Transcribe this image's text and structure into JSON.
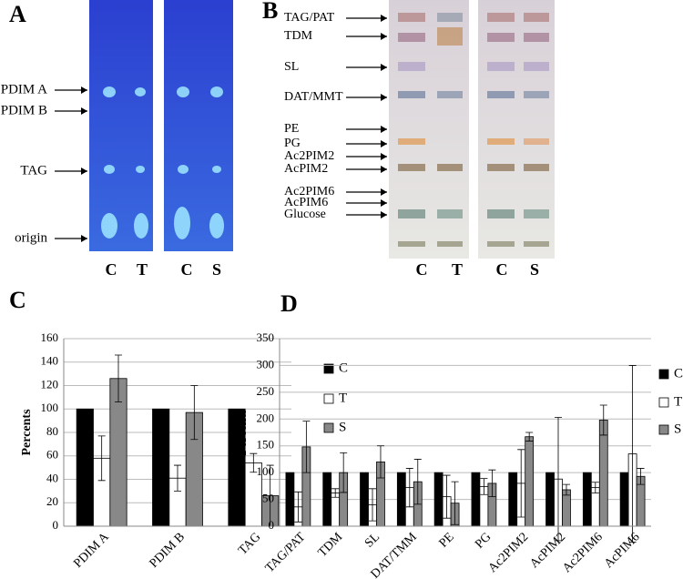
{
  "tlc_panels": [
    {
      "label": "A",
      "bands": [
        "PDIM A",
        "PDIM B",
        "TAG",
        "origin"
      ],
      "lanes": [
        "C",
        "T",
        "C",
        "S"
      ]
    },
    {
      "label": "B",
      "bands": [
        "TAG/PAT",
        "TDM",
        "SL",
        "DAT/MMT",
        "PE",
        "PG",
        "Ac2PIM2",
        "AcPIM2",
        "Ac2PIM6",
        "AcPIM6",
        "Glucose"
      ],
      "lanes": [
        "C",
        "T",
        "C",
        "S"
      ]
    }
  ],
  "chart_data": [
    {
      "type": "bar",
      "title": "C",
      "y_label": "Percents",
      "categories": [
        "PDIM A",
        "PDIM B",
        "TAG"
      ],
      "series": [
        {
          "name": "C",
          "color": "#000000",
          "values": [
            100,
            100,
            100
          ]
        },
        {
          "name": "T",
          "color": "#ffffff",
          "values": [
            58,
            41,
            54
          ],
          "errors": [
            19,
            11,
            8
          ]
        },
        {
          "name": "S",
          "color": "#888888",
          "values": [
            126,
            97,
            26
          ],
          "errors": [
            20,
            23,
            26
          ]
        }
      ],
      "ylim": [
        0,
        160
      ],
      "yticks": [
        0,
        20,
        40,
        60,
        80,
        100,
        120,
        140,
        160
      ],
      "grid": true,
      "legend": "right"
    },
    {
      "type": "bar",
      "title": "D",
      "y_label": "Percents",
      "categories": [
        "TAG/PAT",
        "TDM",
        "SL",
        "DAT/TMM",
        "PE",
        "PG",
        "Ac2PIM2",
        "AcPIM2",
        "Ac2PIM6",
        "AcPIM6"
      ],
      "series": [
        {
          "name": "C",
          "color": "#000000",
          "values": [
            100,
            100,
            100,
            100,
            100,
            100,
            100,
            100,
            100,
            100
          ]
        },
        {
          "name": "T",
          "color": "#ffffff",
          "values": [
            36,
            62,
            40,
            72,
            55,
            74,
            80,
            88,
            72,
            135
          ],
          "errors": [
            28,
            8,
            30,
            36,
            40,
            15,
            63,
            115,
            10,
            165
          ]
        },
        {
          "name": "S",
          "color": "#888888",
          "values": [
            148,
            100,
            120,
            83,
            43,
            80,
            167,
            68,
            198,
            93
          ],
          "errors": [
            48,
            37,
            30,
            42,
            40,
            25,
            8,
            10,
            28,
            15
          ]
        }
      ],
      "ylim": [
        0,
        350
      ],
      "yticks": [
        0,
        50,
        100,
        150,
        200,
        250,
        300,
        350
      ],
      "grid": true,
      "legend": "right"
    }
  ]
}
